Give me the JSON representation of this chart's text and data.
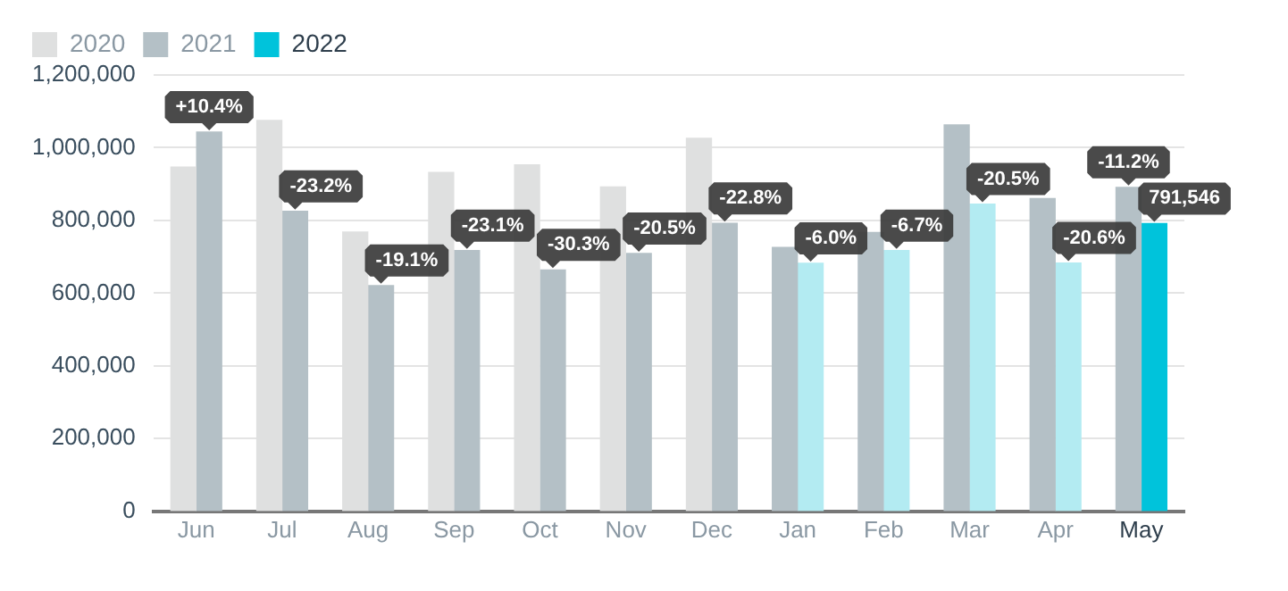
{
  "chart_data": {
    "type": "bar",
    "categories": [
      "Jun",
      "Jul",
      "Aug",
      "Sep",
      "Oct",
      "Nov",
      "Dec",
      "Jan",
      "Feb",
      "Mar",
      "Apr",
      "May"
    ],
    "series": [
      {
        "name": "2020",
        "color": "#dfe0e0",
        "values": [
          947000,
          1075000,
          768000,
          932000,
          953000,
          892000,
          1026000,
          null,
          null,
          null,
          null,
          null
        ]
      },
      {
        "name": "2021",
        "color": "#b4c0c6",
        "values": [
          1043000,
          825000,
          621000,
          717000,
          664000,
          709000,
          792000,
          726000,
          767000,
          1063000,
          860000,
          891000
        ]
      },
      {
        "name": "2022",
        "color": "#00c3db",
        "value_labels": [
          null,
          null,
          null,
          null,
          null,
          null,
          null,
          null,
          null,
          null,
          null,
          "791,546"
        ],
        "colors": [
          "#b3ebf2",
          "#b3ebf2",
          "#b3ebf2",
          "#b3ebf2",
          "#b3ebf2",
          "#b3ebf2",
          "#b3ebf2",
          "#b3ebf2",
          "#b3ebf2",
          "#b3ebf2",
          "#b3ebf2",
          "#00c3db"
        ],
        "values": [
          null,
          null,
          null,
          null,
          null,
          null,
          null,
          682000,
          717000,
          845000,
          683000,
          791546
        ]
      }
    ],
    "ylim": [
      0,
      1200000
    ],
    "yticks": [
      0,
      {
        "value": 200000,
        "label": "200,000"
      },
      {
        "value": 400000,
        "label": "400,000"
      },
      {
        "value": 600000,
        "label": "600,000"
      },
      {
        "value": 800000,
        "label": "800,000"
      },
      {
        "value": 1000000,
        "label": "1,000,000"
      },
      {
        "value": 1200000,
        "label": "1,200,000"
      }
    ],
    "grid": "y",
    "legend": "top left",
    "annotations": [
      {
        "text": "+10.4%",
        "x": "Jun",
        "y": 1043000
      },
      {
        "text": "-23.2%",
        "x": "Jul",
        "y": 825000
      },
      {
        "text": "-19.1%",
        "x": "Aug",
        "y": 621000
      },
      {
        "text": "-23.1%",
        "x": "Sep",
        "y": 717000
      },
      {
        "text": "-30.3%",
        "x": "Oct",
        "y": 664000
      },
      {
        "text": "-20.5%",
        "x": "Nov",
        "y": 709000
      },
      {
        "text": "-22.8%",
        "x": "Dec",
        "y": 792000
      },
      {
        "text": "-6.0%",
        "x": "Jan",
        "y": 682000
      },
      {
        "text": "-6.7%",
        "x": "Feb",
        "y": 717000
      },
      {
        "text": "-20.5%",
        "x": "Mar",
        "y": 845000
      },
      {
        "text": "-20.6%",
        "x": "Apr",
        "y": 683000
      },
      {
        "text": "-11.2%",
        "x": "May",
        "y": 891000
      }
    ]
  }
}
